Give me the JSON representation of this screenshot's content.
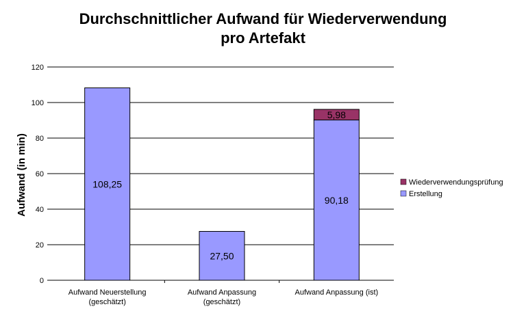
{
  "chart_data": {
    "type": "bar",
    "stacked": true,
    "title_line1": "Durchschnittlicher Aufwand für Wiederverwendung",
    "title_line2": "pro Artefakt",
    "ylabel": "Aufwand (in min)",
    "xlabel": "",
    "ylim": [
      0,
      120
    ],
    "yticks": [
      "0",
      "20",
      "40",
      "60",
      "80",
      "100",
      "120"
    ],
    "grid": true,
    "legend_position": "right",
    "categories": [
      [
        "Aufwand Neuerstellung",
        "(geschätzt)"
      ],
      [
        "Aufwand Anpassung",
        "(geschätzt)"
      ],
      [
        "Aufwand Anpassung (ist)"
      ]
    ],
    "series": [
      {
        "name": "Erstellung",
        "color": "#9999ff",
        "values": [
          108.25,
          27.5,
          90.18
        ],
        "labels": [
          "108,25",
          "27,50",
          "90,18"
        ]
      },
      {
        "name": "Wiederverwendungsprüfung",
        "color": "#993366",
        "values": [
          0,
          0,
          5.98
        ],
        "labels": [
          "",
          "",
          "5,98"
        ]
      }
    ],
    "legend": [
      "Wiederverwendungsprüfung",
      "Erstellung"
    ]
  }
}
